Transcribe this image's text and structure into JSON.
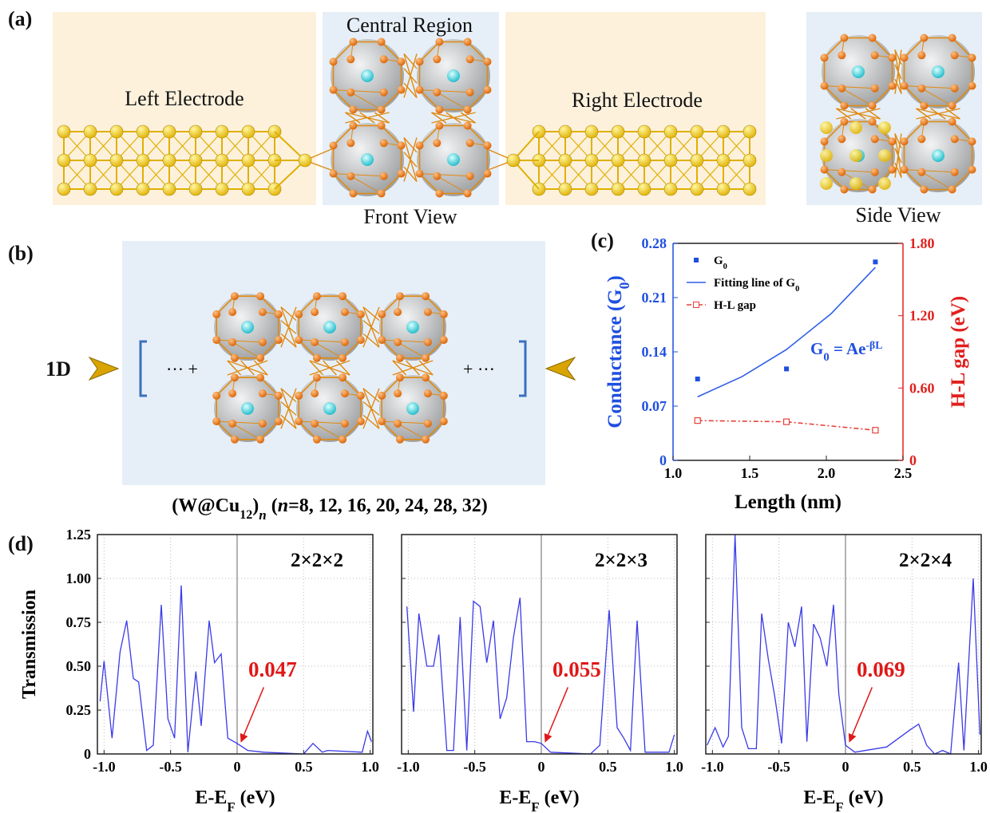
{
  "panel_a": {
    "label": "(a)",
    "left_electrode": "Left Electrode",
    "central_region": "Central Region",
    "right_electrode": "Right Electrode",
    "front_view": "Front View",
    "side_view": "Side View"
  },
  "panel_b": {
    "label": "(b)",
    "dimension": "1D",
    "left_dots": "··· +",
    "right_dots": "+ ···",
    "formula": [
      "(W@Cu",
      "12",
      ")",
      "n",
      " (",
      "n",
      "=8, 12, 16, 20, 24, 28, 32)"
    ]
  },
  "chart_data": [
    {
      "type": "combo",
      "label": "(c)",
      "xlabel": "Length (nm)",
      "ylabel": [
        "Conductance (G",
        "0",
        ")"
      ],
      "y2label": "H-L gap (eV)",
      "annotation": [
        "G",
        "0",
        " = Ae",
        "-βL"
      ],
      "xlim": [
        1.0,
        2.5
      ],
      "xticks": [
        {
          "value": 1.0,
          "label": "1.0"
        },
        1.5,
        {
          "value": 2.0,
          "label": "2.0"
        },
        2.5
      ],
      "ylim": [
        0,
        0.28
      ],
      "yticks": [
        0,
        0.07,
        0.14,
        0.21,
        0.28
      ],
      "y2lim": [
        0,
        1.8
      ],
      "y2ticks": [
        0,
        {
          "value": 0.6,
          "label": "0.60"
        },
        {
          "value": 1.2,
          "label": "1.20"
        },
        {
          "value": 1.8,
          "label": "1.80"
        }
      ],
      "ycolor": "#1f4fe0",
      "y2color": "#e0201e",
      "series": [
        {
          "name": [
            "G",
            "0"
          ],
          "kind": "scatter",
          "color": "#1f4fe0",
          "x": [
            1.16,
            1.74,
            2.32
          ],
          "values": [
            0.105,
            0.118,
            0.256
          ]
        },
        {
          "name": [
            "Fitting line of G",
            "0"
          ],
          "kind": "line",
          "color": "#2f5fe8",
          "x": [
            1.16,
            1.45,
            1.74,
            2.03,
            2.32
          ],
          "values": [
            0.082,
            0.108,
            0.143,
            0.189,
            0.249
          ]
        },
        {
          "name": "H-L gap",
          "kind": "line-marker",
          "color": "#e8403a",
          "axis": "y2",
          "x": [
            1.16,
            1.74,
            2.32
          ],
          "values": [
            0.33,
            0.32,
            0.25
          ]
        }
      ]
    },
    {
      "type": "line",
      "label": "(d)",
      "ylabel": "Transmission",
      "xlabel": [
        "E-E",
        "F",
        " (eV)"
      ],
      "box_label": "2×2×2",
      "annotation": "0.047",
      "xlim": [
        -1.05,
        1.02
      ],
      "ylim": [
        0,
        1.25
      ],
      "xticks": [
        {
          "value": -1.0,
          "label": "-1.0"
        },
        -0.5,
        0,
        0.5,
        {
          "value": 1.0,
          "label": "1.0"
        }
      ],
      "yticks": [
        0,
        0.25,
        {
          "value": 0.5,
          "label": "0.50"
        },
        0.75,
        {
          "value": 1.0,
          "label": "1.00"
        },
        1.25
      ],
      "show_ytick_labels": true,
      "grid": true,
      "zero_line": true,
      "color": "#3a3ae8",
      "x": [
        -1.03,
        -1.0,
        -0.94,
        -0.88,
        -0.83,
        -0.78,
        -0.74,
        -0.68,
        -0.63,
        -0.57,
        -0.52,
        -0.47,
        -0.42,
        -0.37,
        -0.31,
        -0.27,
        -0.21,
        -0.17,
        -0.12,
        -0.07,
        0,
        0.08,
        0.2,
        0.5,
        0.57,
        0.64,
        0.68,
        0.94,
        0.98,
        1.01
      ],
      "values": [
        0.3,
        0.53,
        0.09,
        0.58,
        0.76,
        0.43,
        0.41,
        0.02,
        0.05,
        0.85,
        0.2,
        0.09,
        0.96,
        0.01,
        0.47,
        0.16,
        0.76,
        0.52,
        0.57,
        0.09,
        0.06,
        0.02,
        0.01,
        0.0,
        0.06,
        0.01,
        0.02,
        0.01,
        0.13,
        0.07
      ]
    },
    {
      "type": "line",
      "xlabel": [
        "E-E",
        "F",
        " (eV)"
      ],
      "box_label": "2×2×3",
      "annotation": "0.055",
      "xlim": [
        -1.05,
        1.02
      ],
      "ylim": [
        0,
        1.25
      ],
      "xticks": [
        {
          "value": -1.0,
          "label": "-1.0"
        },
        -0.5,
        0,
        0.5,
        {
          "value": 1.0,
          "label": "1.0"
        }
      ],
      "yticks": [
        0,
        0.25,
        0.5,
        0.75,
        1,
        1.25
      ],
      "show_ytick_labels": false,
      "grid": true,
      "zero_line": true,
      "color": "#3a3ae8",
      "x": [
        -1.01,
        -0.96,
        -0.92,
        -0.86,
        -0.81,
        -0.77,
        -0.71,
        -0.66,
        -0.61,
        -0.56,
        -0.51,
        -0.46,
        -0.41,
        -0.36,
        -0.31,
        -0.26,
        -0.21,
        -0.16,
        -0.11,
        -0.05,
        0,
        0.07,
        0.37,
        0.44,
        0.51,
        0.57,
        0.62,
        0.67,
        0.72,
        0.78,
        0.96,
        1.0
      ],
      "values": [
        0.84,
        0.24,
        0.8,
        0.5,
        0.5,
        0.68,
        0.02,
        0.02,
        0.78,
        0.02,
        0.87,
        0.84,
        0.52,
        0.76,
        0.2,
        0.32,
        0.66,
        0.89,
        0.07,
        0.07,
        0.06,
        0.01,
        0.0,
        0.05,
        0.82,
        0.15,
        0.09,
        0.02,
        0.76,
        0.01,
        0.01,
        0.11
      ]
    },
    {
      "type": "line",
      "xlabel": [
        "E-E",
        "F",
        " (eV)"
      ],
      "box_label": "2×2×4",
      "annotation": "0.069",
      "xlim": [
        -1.05,
        1.02
      ],
      "ylim": [
        0,
        1.25
      ],
      "xticks": [
        {
          "value": -1.0,
          "label": "-1.0"
        },
        -0.5,
        0,
        0.5,
        {
          "value": 1.0,
          "label": "1.0"
        }
      ],
      "yticks": [
        0,
        0.25,
        0.5,
        0.75,
        1,
        1.25
      ],
      "show_ytick_labels": false,
      "grid": true,
      "zero_line": true,
      "color": "#3a3ae8",
      "x": [
        -1.04,
        -0.98,
        -0.92,
        -0.88,
        -0.83,
        -0.78,
        -0.73,
        -0.67,
        -0.63,
        -0.58,
        -0.53,
        -0.48,
        -0.43,
        -0.38,
        -0.33,
        -0.29,
        -0.24,
        -0.19,
        -0.14,
        -0.09,
        -0.05,
        0,
        0.07,
        0.31,
        0.49,
        0.55,
        0.61,
        0.67,
        0.73,
        0.79,
        0.85,
        0.89,
        0.96,
        1.01
      ],
      "values": [
        0.05,
        0.15,
        0.04,
        0.1,
        1.25,
        0.15,
        0.03,
        0.03,
        0.8,
        0.54,
        0.32,
        0.06,
        0.75,
        0.61,
        0.84,
        0.07,
        0.74,
        0.66,
        0.5,
        0.85,
        0.34,
        0.05,
        0.01,
        0.04,
        0.14,
        0.17,
        0.05,
        0.0,
        0.02,
        0.0,
        0.52,
        0.02,
        1.0,
        0.11
      ]
    }
  ]
}
